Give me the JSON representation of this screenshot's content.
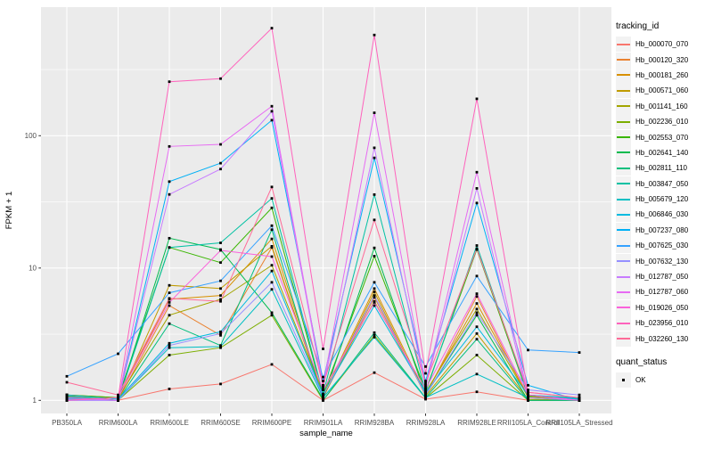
{
  "chart_data": {
    "type": "line",
    "title": "",
    "xlabel": "sample_name",
    "ylabel": "FPKM + 1",
    "y_axis": {
      "scale": "log10",
      "ticks": [
        1,
        10,
        100
      ],
      "minor_ticks": [
        3.162,
        31.62,
        316.2
      ],
      "range_approx": [
        0.95,
        700
      ]
    },
    "grid": "on",
    "panel_background": "#EBEBEB",
    "gridline_color": "#FFFFFF",
    "point_color": "#000000",
    "point_shape": "small-black-square",
    "legend": {
      "position": "right",
      "title": "tracking_id",
      "quant_title": "quant_status",
      "quant_label": "OK",
      "quant_key_shape": "black-square-point"
    },
    "categories": [
      "PB350LA",
      "RRIM600LA",
      "RRIM600LE",
      "RRIM600SE",
      "RRIM600PE",
      "RRIM901LA",
      "RRIM928BA",
      "RRIM928LA",
      "RRIM928LE",
      "RRII105LA_Control",
      "RRII105LA_Stressed"
    ],
    "series": [
      {
        "name": "Hb_000070_070",
        "color": "#F8766D",
        "values": [
          1.05,
          1.0,
          1.22,
          1.33,
          1.87,
          1.0,
          1.62,
          1.02,
          1.16,
          1.0,
          1.0
        ]
      },
      {
        "name": "Hb_000120_320",
        "color": "#EA8331",
        "values": [
          1.08,
          1.0,
          5.2,
          3.1,
          14.3,
          1.05,
          6.0,
          1.1,
          6.1,
          1.05,
          1.0
        ]
      },
      {
        "name": "Hb_000181_260",
        "color": "#D89000",
        "values": [
          1.1,
          1.05,
          5.8,
          6.2,
          16.6,
          1.08,
          7.0,
          1.12,
          5.4,
          1.08,
          1.02
        ]
      },
      {
        "name": "Hb_000571_060",
        "color": "#C09B00",
        "values": [
          1.05,
          1.0,
          7.4,
          7.0,
          14.6,
          1.05,
          6.6,
          1.08,
          3.2,
          1.02,
          1.0
        ]
      },
      {
        "name": "Hb_001141_160",
        "color": "#A3A500",
        "values": [
          1.1,
          1.04,
          4.4,
          5.8,
          10.5,
          1.1,
          5.6,
          1.15,
          4.9,
          1.06,
          1.02
        ]
      },
      {
        "name": "Hb_002236_010",
        "color": "#7CAE00",
        "values": [
          1.04,
          1.0,
          2.2,
          2.5,
          4.4,
          1.0,
          3.1,
          1.04,
          2.2,
          1.0,
          1.0
        ]
      },
      {
        "name": "Hb_002553_070",
        "color": "#39B600",
        "values": [
          1.1,
          1.05,
          14.3,
          11.0,
          28.5,
          1.1,
          12.3,
          1.18,
          13.8,
          1.08,
          1.03
        ]
      },
      {
        "name": "Hb_002641_140",
        "color": "#00BB4E",
        "values": [
          1.06,
          1.0,
          16.8,
          13.8,
          4.6,
          1.02,
          14.2,
          1.1,
          4.4,
          1.0,
          1.0
        ]
      },
      {
        "name": "Hb_002811_110",
        "color": "#00BF7D",
        "values": [
          1.02,
          1.0,
          3.8,
          2.6,
          19.5,
          1.0,
          3.25,
          1.05,
          2.9,
          1.0,
          1.0
        ]
      },
      {
        "name": "Hb_003847_050",
        "color": "#00C1A3",
        "values": [
          1.07,
          1.0,
          14.3,
          15.5,
          33.6,
          1.12,
          35.9,
          1.15,
          14.8,
          1.1,
          1.04
        ]
      },
      {
        "name": "Hb_005679_120",
        "color": "#00BFC4",
        "values": [
          1.03,
          1.0,
          2.5,
          2.55,
          6.9,
          1.05,
          3.0,
          1.05,
          1.58,
          1.05,
          1.0
        ]
      },
      {
        "name": "Hb_006846_030",
        "color": "#00BAE0",
        "values": [
          1.1,
          1.02,
          2.7,
          3.3,
          9.5,
          1.1,
          5.2,
          1.15,
          3.6,
          1.1,
          1.02
        ]
      },
      {
        "name": "Hb_007237_080",
        "color": "#00B0F6",
        "values": [
          1.0,
          1.0,
          45,
          62,
          131,
          1.4,
          68,
          1.4,
          31,
          1.3,
          1.0
        ]
      },
      {
        "name": "Hb_007625_030",
        "color": "#35A2FF",
        "values": [
          1.52,
          2.25,
          6.5,
          8.0,
          20.9,
          1.5,
          7.8,
          1.8,
          8.7,
          2.4,
          2.3
        ]
      },
      {
        "name": "Hb_007632_130",
        "color": "#9590FF",
        "values": [
          1.02,
          1.0,
          2.6,
          3.2,
          7.8,
          1.08,
          6.2,
          1.1,
          4.6,
          1.2,
          1.1
        ]
      },
      {
        "name": "Hb_012787_050",
        "color": "#C77CFF",
        "values": [
          1.0,
          1.0,
          36,
          56,
          153,
          1.25,
          81,
          1.25,
          40,
          1.05,
          1.0
        ]
      },
      {
        "name": "Hb_012787_060",
        "color": "#E76BF3",
        "values": [
          1.05,
          1.0,
          83,
          86,
          167,
          1.3,
          149,
          1.3,
          53,
          1.1,
          1.0
        ]
      },
      {
        "name": "Hb_019026_050",
        "color": "#FA62DB",
        "values": [
          1.0,
          1.05,
          5.5,
          13.6,
          12.2,
          1.2,
          5.5,
          1.22,
          6.4,
          1.1,
          1.0
        ]
      },
      {
        "name": "Hb_023956_010",
        "color": "#FF62BC",
        "values": [
          1.0,
          1.05,
          256,
          270,
          650,
          2.45,
          577,
          1.6,
          190,
          1.15,
          1.05
        ]
      },
      {
        "name": "Hb_032260_130",
        "color": "#FF6A98",
        "values": [
          1.37,
          1.1,
          5.9,
          5.6,
          41,
          1.3,
          23.1,
          1.35,
          14.0,
          1.15,
          1.05
        ]
      }
    ]
  }
}
